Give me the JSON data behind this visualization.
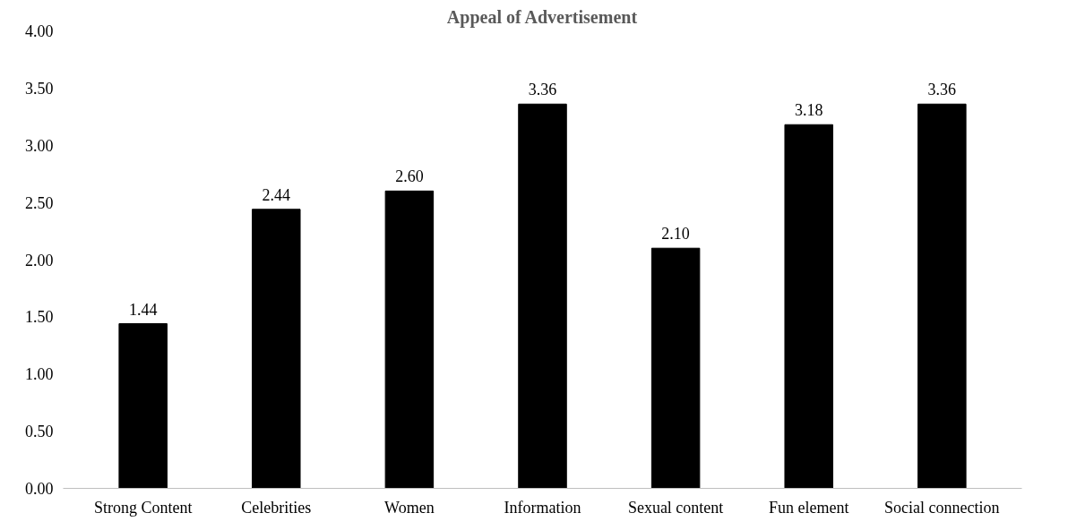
{
  "chart_data": {
    "type": "bar",
    "title": "Appeal of Advertisement",
    "categories": [
      "Strong Content",
      "Celebrities",
      "Women",
      "Information",
      "Sexual content",
      "Fun element",
      "Social connection"
    ],
    "values": [
      1.44,
      2.44,
      2.6,
      3.36,
      2.1,
      3.18,
      3.36
    ],
    "value_labels": [
      "1.44",
      "2.44",
      "2.60",
      "3.36",
      "2.10",
      "3.18",
      "3.36"
    ],
    "color": "#000000",
    "ylim": [
      0,
      4
    ],
    "yticks": [
      {
        "value": 0,
        "label": "0.00"
      },
      {
        "value": 0.5,
        "label": "0.50"
      },
      {
        "value": 1,
        "label": "1.00"
      },
      {
        "value": 1.5,
        "label": "1.50"
      },
      {
        "value": 2,
        "label": "2.00"
      },
      {
        "value": 2.5,
        "label": "2.50"
      },
      {
        "value": 3,
        "label": "3.00"
      },
      {
        "value": 3.5,
        "label": "3.50"
      },
      {
        "value": 4,
        "label": "4.00"
      }
    ],
    "grid": false
  }
}
